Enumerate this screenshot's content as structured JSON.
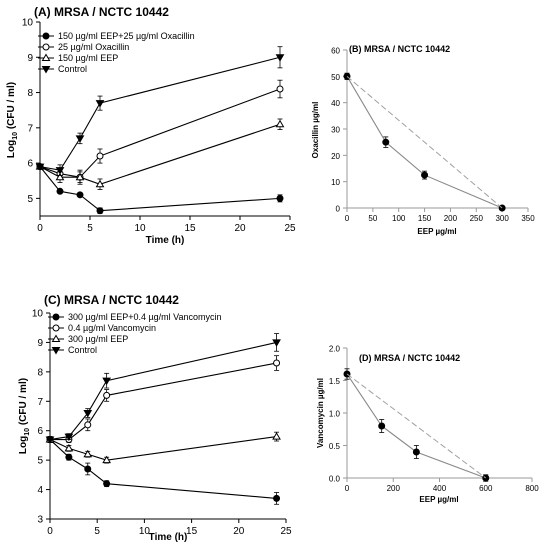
{
  "chart_data": [
    {
      "id": "A",
      "type": "line",
      "title": "(A)  MRSA / NCTC 10442",
      "xlabel": "Time (h)",
      "ylabel_pre": "Log",
      "ylabel_sub": "10",
      "ylabel_post": " (CFU / ml)",
      "xlim": [
        0,
        25
      ],
      "ylim": [
        4.5,
        10
      ],
      "xticks": [
        0,
        5,
        10,
        15,
        20,
        25
      ],
      "yticks": [
        5,
        6,
        7,
        8,
        9,
        10
      ],
      "legend_position": "top-left",
      "series": [
        {
          "name": "150 µg/ml EEP+25 µg/ml Oxacillin",
          "marker": "circle-filled",
          "x": [
            0,
            2,
            4,
            6,
            24
          ],
          "y": [
            5.9,
            5.2,
            5.1,
            4.65,
            5.0
          ],
          "err": [
            0.05,
            0.05,
            0.05,
            0.08,
            0.1
          ]
        },
        {
          "name": "25 µg/ml Oxacillin",
          "marker": "circle-open",
          "x": [
            0,
            2,
            4,
            6,
            24
          ],
          "y": [
            5.9,
            5.7,
            5.6,
            6.2,
            8.1
          ],
          "err": [
            0.05,
            0.15,
            0.2,
            0.2,
            0.25
          ]
        },
        {
          "name": "150 µg/ml EEP",
          "marker": "triangle-open",
          "x": [
            0,
            2,
            4,
            6,
            24
          ],
          "y": [
            5.9,
            5.6,
            5.6,
            5.4,
            7.1
          ],
          "err": [
            0.05,
            0.15,
            0.15,
            0.15,
            0.15
          ]
        },
        {
          "name": "Control",
          "marker": "triangle-down-filled",
          "x": [
            0,
            2,
            4,
            6,
            24
          ],
          "y": [
            5.9,
            5.8,
            6.7,
            7.7,
            9.0
          ],
          "err": [
            0.05,
            0.15,
            0.15,
            0.2,
            0.3
          ]
        }
      ]
    },
    {
      "id": "B",
      "type": "line",
      "title": "(B)    MRSA / NCTC 10442",
      "xlabel": "EEP µg/ml",
      "ylabel": "Oxacillin µg/ml",
      "xlim": [
        0,
        350
      ],
      "ylim": [
        0,
        60
      ],
      "xticks": [
        0,
        50,
        100,
        150,
        200,
        250,
        300,
        350
      ],
      "yticks": [
        0,
        10,
        20,
        30,
        40,
        50,
        60
      ],
      "series": [
        {
          "style": "solid",
          "marker": "circle-filled",
          "x": [
            0,
            75,
            150,
            300
          ],
          "y": [
            50,
            25,
            12.5,
            0
          ],
          "err": [
            1.2,
            2,
            1.5,
            0.5
          ]
        },
        {
          "style": "dashed",
          "marker": "none",
          "x": [
            0,
            300
          ],
          "y": [
            50,
            0
          ]
        }
      ]
    },
    {
      "id": "C",
      "type": "line",
      "title": "(C)   MRSA / NCTC 10442",
      "xlabel": "Time (h)",
      "ylabel_pre": "Log",
      "ylabel_sub": "10",
      "ylabel_post": " (CFU / ml)",
      "xlim": [
        0,
        25
      ],
      "ylim": [
        3,
        10
      ],
      "xticks": [
        0,
        5,
        10,
        15,
        20,
        25
      ],
      "yticks": [
        3,
        4,
        5,
        6,
        7,
        8,
        9,
        10
      ],
      "legend_position": "top-left",
      "series": [
        {
          "name": "300 µg/ml EEP+0.4 µg/ml Vancomycin",
          "marker": "circle-filled",
          "x": [
            0,
            2,
            4,
            6,
            24
          ],
          "y": [
            5.7,
            5.1,
            4.7,
            4.2,
            3.7
          ],
          "err": [
            0.1,
            0.1,
            0.2,
            0.1,
            0.2
          ]
        },
        {
          "name": "0.4 µg/ml Vancomycin",
          "marker": "circle-open",
          "x": [
            0,
            2,
            4,
            6,
            24
          ],
          "y": [
            5.7,
            5.7,
            6.2,
            7.2,
            8.3
          ],
          "err": [
            0.1,
            0.1,
            0.2,
            0.2,
            0.25
          ]
        },
        {
          "name": "300 µg/ml EEP",
          "marker": "triangle-open",
          "x": [
            0,
            2,
            4,
            6,
            24
          ],
          "y": [
            5.7,
            5.4,
            5.2,
            5.0,
            5.8
          ],
          "err": [
            0.1,
            0.1,
            0.1,
            0.1,
            0.15
          ]
        },
        {
          "name": "Control",
          "marker": "triangle-down-filled",
          "x": [
            0,
            2,
            4,
            6,
            24
          ],
          "y": [
            5.7,
            5.8,
            6.6,
            7.7,
            9.0
          ],
          "err": [
            0.1,
            0.1,
            0.15,
            0.25,
            0.3
          ]
        }
      ]
    },
    {
      "id": "D",
      "type": "line",
      "title": "(D)    MRSA / NCTC 10442",
      "xlabel": "EEP µg/ml",
      "ylabel": "Vancomycin µg/ml",
      "xlim": [
        0,
        800
      ],
      "ylim": [
        0,
        2
      ],
      "xticks": [
        0,
        200,
        400,
        600,
        800
      ],
      "yticks": [
        0.0,
        0.5,
        1.0,
        1.5,
        2.0
      ],
      "ytick_labels": [
        "0.0",
        "0.5",
        "1.0",
        "1.5",
        "2.0"
      ],
      "series": [
        {
          "style": "solid",
          "marker": "circle-filled",
          "x": [
            0,
            150,
            300,
            600
          ],
          "y": [
            1.6,
            0.8,
            0.4,
            0.0
          ],
          "err": [
            0.08,
            0.1,
            0.1,
            0.05
          ]
        },
        {
          "style": "dashed",
          "marker": "none",
          "x": [
            0,
            600
          ],
          "y": [
            1.6,
            0.0
          ]
        }
      ]
    }
  ]
}
